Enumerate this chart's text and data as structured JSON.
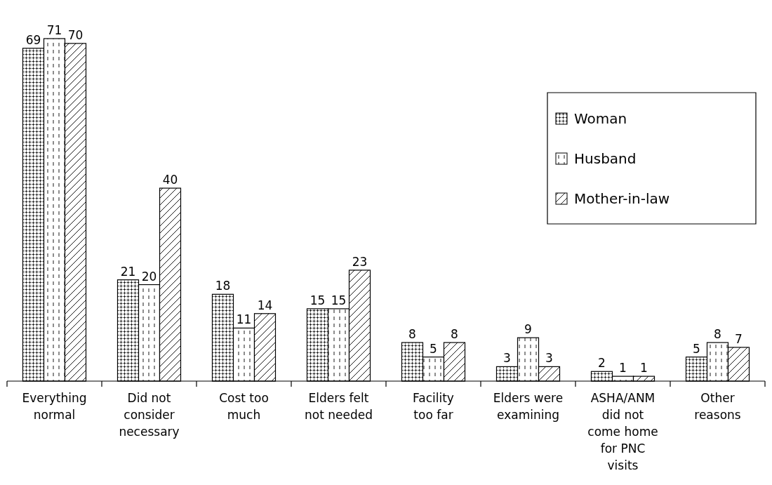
{
  "chart_data": {
    "type": "bar",
    "categories": [
      "Everything normal",
      "Did not consider necessary",
      "Cost too much",
      "Elders felt not needed",
      "Facility too far",
      "Elders were examining",
      "ASHA/ANM did not come home for PNC visits",
      "Other reasons"
    ],
    "series": [
      {
        "name": "Woman",
        "color": "#000000",
        "values": [
          69,
          21,
          18,
          15,
          8,
          3,
          2,
          5
        ]
      },
      {
        "name": "Husband",
        "color": "#000000",
        "values": [
          71,
          20,
          11,
          15,
          5,
          9,
          1,
          8
        ]
      },
      {
        "name": "Mother-in-law",
        "color": "#000000",
        "values": [
          70,
          40,
          14,
          23,
          8,
          3,
          1,
          7
        ]
      }
    ],
    "data_labels": true,
    "legend": "top right",
    "grid": false
  }
}
